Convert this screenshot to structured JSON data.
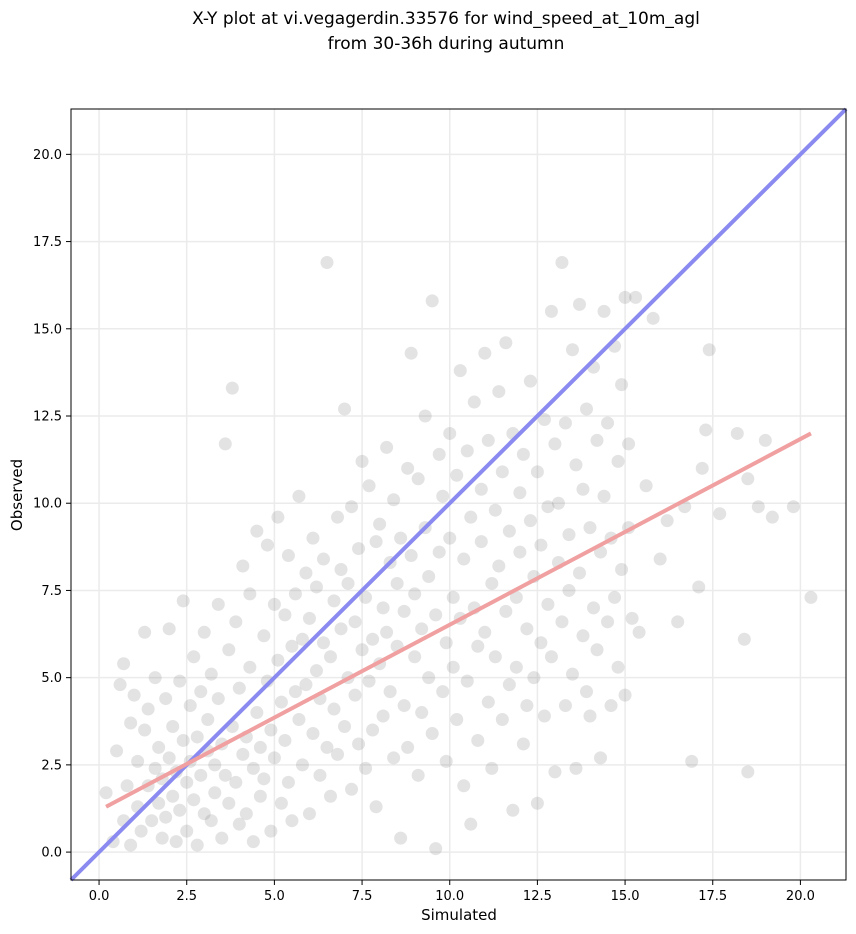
{
  "chart_data": {
    "type": "scatter",
    "title_lines": [
      "X-Y plot at vi.vegagerdin.33576 for wind_speed_at_10m_agl",
      "from 30-36h during autumn"
    ],
    "xlabel": "Simulated",
    "ylabel": "Observed",
    "xlim": [
      -0.8,
      21.3
    ],
    "ylim": [
      -0.8,
      21.3
    ],
    "xticks": [
      0.0,
      2.5,
      5.0,
      7.5,
      10.0,
      12.5,
      15.0,
      17.5,
      20.0
    ],
    "yticks": [
      0.0,
      2.5,
      5.0,
      7.5,
      10.0,
      12.5,
      15.0,
      17.5,
      20.0
    ],
    "xtick_labels": [
      "0.0",
      "2.5",
      "5.0",
      "7.5",
      "10.0",
      "12.5",
      "15.0",
      "17.5",
      "20.0"
    ],
    "ytick_labels": [
      "0.0",
      "2.5",
      "5.0",
      "7.5",
      "10.0",
      "12.5",
      "15.0",
      "17.5",
      "20.0"
    ],
    "grid": true,
    "marker_color": "#808080",
    "series": [
      {
        "values": [
          [
            0.2,
            1.7
          ],
          [
            0.4,
            0.3
          ],
          [
            0.5,
            2.9
          ],
          [
            0.6,
            4.8
          ],
          [
            0.7,
            0.9
          ],
          [
            0.7,
            5.4
          ],
          [
            0.8,
            1.9
          ],
          [
            0.9,
            3.7
          ],
          [
            0.9,
            0.2
          ],
          [
            1.0,
            4.5
          ],
          [
            1.1,
            1.3
          ],
          [
            1.1,
            2.6
          ],
          [
            1.2,
            0.6
          ],
          [
            1.3,
            3.5
          ],
          [
            1.3,
            6.3
          ],
          [
            1.4,
            1.9
          ],
          [
            1.4,
            4.1
          ],
          [
            1.5,
            0.9
          ],
          [
            1.6,
            2.4
          ],
          [
            1.6,
            5.0
          ],
          [
            1.7,
            1.4
          ],
          [
            1.7,
            3.0
          ],
          [
            1.8,
            0.4
          ],
          [
            1.8,
            2.1
          ],
          [
            1.9,
            4.4
          ],
          [
            1.9,
            1.0
          ],
          [
            2.0,
            2.7
          ],
          [
            2.0,
            6.4
          ],
          [
            2.1,
            1.6
          ],
          [
            2.1,
            3.6
          ],
          [
            2.2,
            0.3
          ],
          [
            2.2,
            2.3
          ],
          [
            2.3,
            4.9
          ],
          [
            2.3,
            1.2
          ],
          [
            2.4,
            3.2
          ],
          [
            2.4,
            7.2
          ],
          [
            2.5,
            2.0
          ],
          [
            2.5,
            0.6
          ],
          [
            2.6,
            4.2
          ],
          [
            2.6,
            2.6
          ],
          [
            2.7,
            5.6
          ],
          [
            2.7,
            1.5
          ],
          [
            2.8,
            3.3
          ],
          [
            2.8,
            0.2
          ],
          [
            2.9,
            2.2
          ],
          [
            2.9,
            4.6
          ],
          [
            3.0,
            1.1
          ],
          [
            3.0,
            6.3
          ],
          [
            3.1,
            2.9
          ],
          [
            3.1,
            3.8
          ],
          [
            3.2,
            0.9
          ],
          [
            3.2,
            5.1
          ],
          [
            3.3,
            2.5
          ],
          [
            3.3,
            1.7
          ],
          [
            3.4,
            4.4
          ],
          [
            3.4,
            7.1
          ],
          [
            3.5,
            3.1
          ],
          [
            3.5,
            0.4
          ],
          [
            3.6,
            11.7
          ],
          [
            3.6,
            2.2
          ],
          [
            3.7,
            5.8
          ],
          [
            3.7,
            1.4
          ],
          [
            3.8,
            13.3
          ],
          [
            3.8,
            3.6
          ],
          [
            3.9,
            2.0
          ],
          [
            3.9,
            6.6
          ],
          [
            4.0,
            0.8
          ],
          [
            4.0,
            4.7
          ],
          [
            4.1,
            2.8
          ],
          [
            4.1,
            8.2
          ],
          [
            4.2,
            3.3
          ],
          [
            4.2,
            1.1
          ],
          [
            4.3,
            5.3
          ],
          [
            4.3,
            7.4
          ],
          [
            4.4,
            2.4
          ],
          [
            4.4,
            0.3
          ],
          [
            4.5,
            4.0
          ],
          [
            4.5,
            9.2
          ],
          [
            4.6,
            3.0
          ],
          [
            4.6,
            1.6
          ],
          [
            4.7,
            6.2
          ],
          [
            4.7,
            2.1
          ],
          [
            4.8,
            4.9
          ],
          [
            4.8,
            8.8
          ],
          [
            4.9,
            3.5
          ],
          [
            4.9,
            0.6
          ],
          [
            5.0,
            7.1
          ],
          [
            5.0,
            2.7
          ],
          [
            5.1,
            5.5
          ],
          [
            5.1,
            9.6
          ],
          [
            5.2,
            4.3
          ],
          [
            5.2,
            1.4
          ],
          [
            5.3,
            6.8
          ],
          [
            5.3,
            3.2
          ],
          [
            5.4,
            2.0
          ],
          [
            5.4,
            8.5
          ],
          [
            5.5,
            5.9
          ],
          [
            5.5,
            0.9
          ],
          [
            5.6,
            4.6
          ],
          [
            5.6,
            7.4
          ],
          [
            5.7,
            3.8
          ],
          [
            5.7,
            10.2
          ],
          [
            5.8,
            6.1
          ],
          [
            5.8,
            2.5
          ],
          [
            5.9,
            8.0
          ],
          [
            5.9,
            4.8
          ],
          [
            6.0,
            1.1
          ],
          [
            6.0,
            6.7
          ],
          [
            6.1,
            3.4
          ],
          [
            6.1,
            9.0
          ],
          [
            6.2,
            5.2
          ],
          [
            6.2,
            7.6
          ],
          [
            6.3,
            2.2
          ],
          [
            6.3,
            4.4
          ],
          [
            6.4,
            8.4
          ],
          [
            6.4,
            6.0
          ],
          [
            6.5,
            3.0
          ],
          [
            6.5,
            16.9
          ],
          [
            6.6,
            5.6
          ],
          [
            6.6,
            1.6
          ],
          [
            6.7,
            7.2
          ],
          [
            6.7,
            4.1
          ],
          [
            6.8,
            9.6
          ],
          [
            6.8,
            2.8
          ],
          [
            6.9,
            6.4
          ],
          [
            6.9,
            8.1
          ],
          [
            7.0,
            3.6
          ],
          [
            7.0,
            12.7
          ],
          [
            7.1,
            5.0
          ],
          [
            7.1,
            7.7
          ],
          [
            7.2,
            1.8
          ],
          [
            7.2,
            9.9
          ],
          [
            7.3,
            4.5
          ],
          [
            7.3,
            6.6
          ],
          [
            7.4,
            3.1
          ],
          [
            7.4,
            8.7
          ],
          [
            7.5,
            5.8
          ],
          [
            7.5,
            11.2
          ],
          [
            7.6,
            2.4
          ],
          [
            7.6,
            7.3
          ],
          [
            7.7,
            4.9
          ],
          [
            7.7,
            10.5
          ],
          [
            7.8,
            6.1
          ],
          [
            7.8,
            3.5
          ],
          [
            7.9,
            8.9
          ],
          [
            7.9,
            1.3
          ],
          [
            8.0,
            5.4
          ],
          [
            8.0,
            9.4
          ],
          [
            8.1,
            7.0
          ],
          [
            8.1,
            3.9
          ],
          [
            8.2,
            11.6
          ],
          [
            8.2,
            6.3
          ],
          [
            8.3,
            4.6
          ],
          [
            8.3,
            8.3
          ],
          [
            8.4,
            2.7
          ],
          [
            8.4,
            10.1
          ],
          [
            8.5,
            5.9
          ],
          [
            8.5,
            7.7
          ],
          [
            8.6,
            0.4
          ],
          [
            8.6,
            9.0
          ],
          [
            8.7,
            4.2
          ],
          [
            8.7,
            6.9
          ],
          [
            8.8,
            11.0
          ],
          [
            8.8,
            3.0
          ],
          [
            8.9,
            8.5
          ],
          [
            8.9,
            14.3
          ],
          [
            9.0,
            5.6
          ],
          [
            9.0,
            7.4
          ],
          [
            9.1,
            2.2
          ],
          [
            9.1,
            10.7
          ],
          [
            9.2,
            6.4
          ],
          [
            9.2,
            4.0
          ],
          [
            9.3,
            9.3
          ],
          [
            9.3,
            12.5
          ],
          [
            9.4,
            5.0
          ],
          [
            9.4,
            7.9
          ],
          [
            9.5,
            3.4
          ],
          [
            9.5,
            15.8
          ],
          [
            9.6,
            6.8
          ],
          [
            9.6,
            0.1
          ],
          [
            9.7,
            11.4
          ],
          [
            9.7,
            8.6
          ],
          [
            9.8,
            4.6
          ],
          [
            9.8,
            10.2
          ],
          [
            9.9,
            6.0
          ],
          [
            9.9,
            2.6
          ],
          [
            10.0,
            9.0
          ],
          [
            10.0,
            12.0
          ],
          [
            10.1,
            5.3
          ],
          [
            10.1,
            7.3
          ],
          [
            10.2,
            3.8
          ],
          [
            10.2,
            10.8
          ],
          [
            10.3,
            13.8
          ],
          [
            10.3,
            6.7
          ],
          [
            10.4,
            8.4
          ],
          [
            10.4,
            1.9
          ],
          [
            10.5,
            11.5
          ],
          [
            10.5,
            4.9
          ],
          [
            10.6,
            9.6
          ],
          [
            10.6,
            0.8
          ],
          [
            10.7,
            7.0
          ],
          [
            10.7,
            12.9
          ],
          [
            10.8,
            5.9
          ],
          [
            10.8,
            3.2
          ],
          [
            10.9,
            8.9
          ],
          [
            10.9,
            10.4
          ],
          [
            11.0,
            6.3
          ],
          [
            11.0,
            14.3
          ],
          [
            11.1,
            4.3
          ],
          [
            11.1,
            11.8
          ],
          [
            11.2,
            7.7
          ],
          [
            11.2,
            2.4
          ],
          [
            11.3,
            9.8
          ],
          [
            11.3,
            5.6
          ],
          [
            11.4,
            13.2
          ],
          [
            11.4,
            8.2
          ],
          [
            11.5,
            3.8
          ],
          [
            11.5,
            10.9
          ],
          [
            11.6,
            6.9
          ],
          [
            11.6,
            14.6
          ],
          [
            11.7,
            4.8
          ],
          [
            11.7,
            9.2
          ],
          [
            11.8,
            1.2
          ],
          [
            11.8,
            12.0
          ],
          [
            11.9,
            7.3
          ],
          [
            11.9,
            5.3
          ],
          [
            12.0,
            10.3
          ],
          [
            12.0,
            8.6
          ],
          [
            12.1,
            3.1
          ],
          [
            12.1,
            11.4
          ],
          [
            12.2,
            6.4
          ],
          [
            12.2,
            4.2
          ],
          [
            12.3,
            9.5
          ],
          [
            12.3,
            13.5
          ],
          [
            12.4,
            7.9
          ],
          [
            12.4,
            5.0
          ],
          [
            12.5,
            1.4
          ],
          [
            12.5,
            10.9
          ],
          [
            12.6,
            8.8
          ],
          [
            12.6,
            6.0
          ],
          [
            12.7,
            12.4
          ],
          [
            12.7,
            3.9
          ],
          [
            12.8,
            9.9
          ],
          [
            12.8,
            7.1
          ],
          [
            12.9,
            15.5
          ],
          [
            12.9,
            5.6
          ],
          [
            13.0,
            11.7
          ],
          [
            13.0,
            2.3
          ],
          [
            13.1,
            8.3
          ],
          [
            13.1,
            10.0
          ],
          [
            13.2,
            6.6
          ],
          [
            13.2,
            16.9
          ],
          [
            13.3,
            4.2
          ],
          [
            13.3,
            12.3
          ],
          [
            13.4,
            9.1
          ],
          [
            13.4,
            7.5
          ],
          [
            13.5,
            5.1
          ],
          [
            13.5,
            14.4
          ],
          [
            13.6,
            11.1
          ],
          [
            13.6,
            2.4
          ],
          [
            13.7,
            8.0
          ],
          [
            13.7,
            15.7
          ],
          [
            13.8,
            6.2
          ],
          [
            13.8,
            10.4
          ],
          [
            13.9,
            4.6
          ],
          [
            13.9,
            12.7
          ],
          [
            14.0,
            9.3
          ],
          [
            14.0,
            3.9
          ],
          [
            14.1,
            7.0
          ],
          [
            14.1,
            13.9
          ],
          [
            14.2,
            11.8
          ],
          [
            14.2,
            5.8
          ],
          [
            14.3,
            8.6
          ],
          [
            14.3,
            2.7
          ],
          [
            14.4,
            15.5
          ],
          [
            14.4,
            10.2
          ],
          [
            14.5,
            6.6
          ],
          [
            14.5,
            12.3
          ],
          [
            14.6,
            4.2
          ],
          [
            14.6,
            9.0
          ],
          [
            14.7,
            14.5
          ],
          [
            14.7,
            7.3
          ],
          [
            14.8,
            11.2
          ],
          [
            14.8,
            5.3
          ],
          [
            14.9,
            13.4
          ],
          [
            14.9,
            8.1
          ],
          [
            15.0,
            15.9
          ],
          [
            15.0,
            4.5
          ],
          [
            15.1,
            11.7
          ],
          [
            15.1,
            9.3
          ],
          [
            15.2,
            6.7
          ],
          [
            15.3,
            15.9
          ],
          [
            15.4,
            6.3
          ],
          [
            15.6,
            10.5
          ],
          [
            15.8,
            15.3
          ],
          [
            16.0,
            8.4
          ],
          [
            16.2,
            9.5
          ],
          [
            16.5,
            6.6
          ],
          [
            16.7,
            9.9
          ],
          [
            16.9,
            2.6
          ],
          [
            17.1,
            7.6
          ],
          [
            17.2,
            11.0
          ],
          [
            17.3,
            12.1
          ],
          [
            17.4,
            14.4
          ],
          [
            17.7,
            9.7
          ],
          [
            18.2,
            12.0
          ],
          [
            18.4,
            6.1
          ],
          [
            18.5,
            2.3
          ],
          [
            18.5,
            10.7
          ],
          [
            18.8,
            9.9
          ],
          [
            19.0,
            11.8
          ],
          [
            19.2,
            9.6
          ],
          [
            19.8,
            9.9
          ],
          [
            20.3,
            7.3
          ]
        ]
      }
    ],
    "reference_lines": [
      {
        "x": [
          -0.8,
          21.3
        ],
        "y": [
          -0.8,
          21.3
        ],
        "color": "#8a8af0"
      },
      {
        "x": [
          0.2,
          20.3
        ],
        "y": [
          1.3,
          12.0
        ],
        "color": "#f0a0a0"
      }
    ]
  }
}
